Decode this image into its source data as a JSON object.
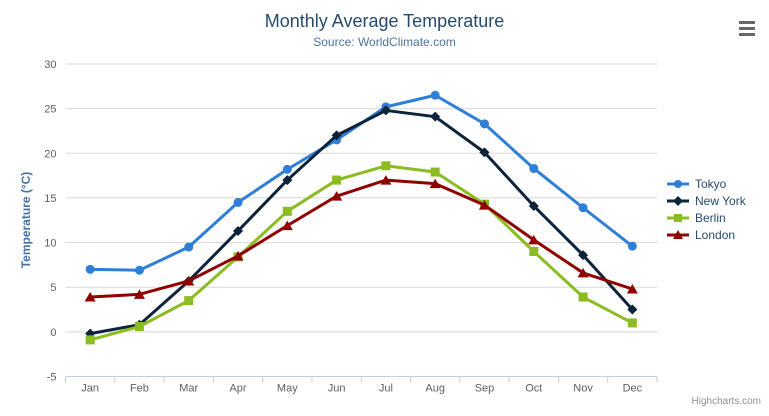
{
  "header": {
    "title": "Monthly Average Temperature",
    "subtitle": "Source: WorldClimate.com"
  },
  "credits_label": "Highcharts.com",
  "chart_data": {
    "type": "line",
    "title": "Monthly Average Temperature",
    "subtitle": "Source: WorldClimate.com",
    "categories": [
      "Jan",
      "Feb",
      "Mar",
      "Apr",
      "May",
      "Jun",
      "Jul",
      "Aug",
      "Sep",
      "Oct",
      "Nov",
      "Dec"
    ],
    "series": [
      {
        "name": "Tokyo",
        "color": "#2f7ed8",
        "marker": "circle",
        "values": [
          7.0,
          6.9,
          9.5,
          14.5,
          18.2,
          21.5,
          25.2,
          26.5,
          23.3,
          18.3,
          13.9,
          9.6
        ]
      },
      {
        "name": "New York",
        "color": "#0d233a",
        "marker": "diamond",
        "values": [
          -0.2,
          0.8,
          5.7,
          11.3,
          17.0,
          22.0,
          24.8,
          24.1,
          20.1,
          14.1,
          8.6,
          2.5
        ]
      },
      {
        "name": "Berlin",
        "color": "#8bbc21",
        "marker": "square",
        "values": [
          -0.9,
          0.6,
          3.5,
          8.4,
          13.5,
          17.0,
          18.6,
          17.9,
          14.3,
          9.0,
          3.9,
          1.0
        ]
      },
      {
        "name": "London",
        "color": "#910000",
        "marker": "triangle",
        "values": [
          3.9,
          4.2,
          5.7,
          8.5,
          11.9,
          15.2,
          17.0,
          16.6,
          14.2,
          10.3,
          6.6,
          4.8
        ]
      }
    ],
    "xlabel": "",
    "ylabel": "Temperature (°C)",
    "ylim": [
      -5,
      30
    ],
    "ytick_step": 5,
    "grid": true,
    "legend_position": "right"
  },
  "colors": {
    "title": "#274b6d",
    "subtitle": "#4d759e",
    "axis_title": "#4572a7",
    "axis_label": "#606060",
    "grid_line": "#d8d8d8",
    "axis_line": "#c0d0e0",
    "legend_text": "#274b6d",
    "credits": "#909090",
    "menu_icon": "#666666"
  }
}
